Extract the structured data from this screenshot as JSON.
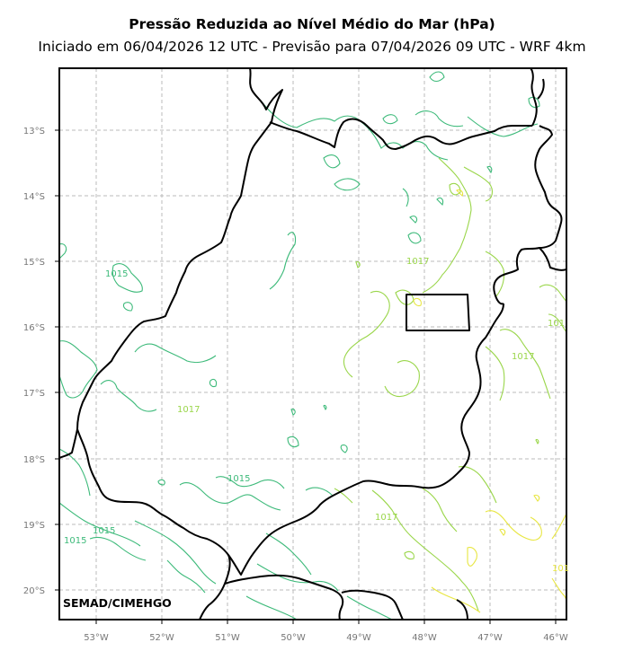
{
  "title": "Pressão Reduzida ao Nível Médio do Mar (hPa)",
  "subtitle": "Iniciado em 06/04/2026 12 UTC - Previsão para 07/04/2026 09 UTC - WRF 4km",
  "credit": "SEMAD/CIMEHGO",
  "lon_ticks": [
    "53°W",
    "52°W",
    "51°W",
    "50°W",
    "49°W",
    "48°W",
    "47°W",
    "46°W"
  ],
  "lat_ticks": [
    "13°S",
    "14°S",
    "15°S",
    "16°S",
    "17°S",
    "18°S",
    "19°S",
    "20°S"
  ],
  "contour_labels": [
    {
      "text": "1015",
      "color": "#3dba7a"
    },
    {
      "text": "1017",
      "color": "#9ad64a"
    },
    {
      "text": "1015",
      "color": "#3dba7a"
    },
    {
      "text": "1015",
      "color": "#3dba7a"
    },
    {
      "text": "1017",
      "color": "#9ad64a"
    },
    {
      "text": "1017",
      "color": "#9ad64a"
    },
    {
      "text": "1017",
      "color": "#9ad64a"
    },
    {
      "text": "1015",
      "color": "#3dba7a"
    },
    {
      "text": "1015",
      "color": "#3dba7a"
    },
    {
      "text": "101",
      "color": "#9ad64a"
    },
    {
      "text": "101",
      "color": "#e8e640"
    }
  ],
  "colors": {
    "c1015": "#3dba7a",
    "c1017": "#9ad64a",
    "c1019": "#e8e640",
    "border": "#000000",
    "grid": "#bbbbbb"
  }
}
